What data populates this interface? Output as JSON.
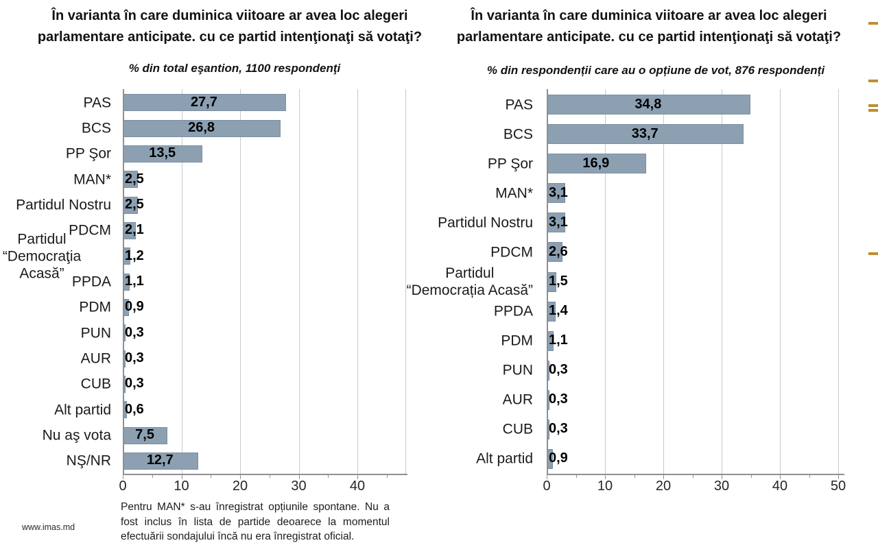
{
  "page": {
    "background": "#ffffff"
  },
  "chart_data": [
    {
      "type": "bar",
      "orientation": "horizontal",
      "title": "În varianta în care duminica viitoare ar avea loc alegeri\nparlamentare anticipate. cu ce partid intenţionaţi să votaţi?",
      "subtitle": "% din total eşantion, 1100 respondenţi",
      "categories": [
        "PAS",
        "BCS",
        "PP Şor",
        "MAN*",
        "Partidul Nostru",
        "PDCM",
        "Partidul\n“Democraţia Acasă”",
        "PPDA",
        "PDM",
        "PUN",
        "AUR",
        "CUB",
        "Alt partid",
        "Nu aş vota",
        "NŞ/NR"
      ],
      "values": [
        27.7,
        26.8,
        13.5,
        2.5,
        2.5,
        2.1,
        1.2,
        1.1,
        0.9,
        0.3,
        0.3,
        0.3,
        0.6,
        7.5,
        12.7
      ],
      "value_labels": [
        "27,7",
        "26,8",
        "13,5",
        "2,5",
        "2,5",
        "2,1",
        "1,2",
        "1,1",
        "0,9",
        "0,3",
        "0,3",
        "0,3",
        "0,6",
        "7,5",
        "12,7"
      ],
      "xlabel": "",
      "ylabel": "",
      "xlim": [
        0,
        48
      ],
      "xticks": [
        0,
        10,
        20,
        30,
        40
      ],
      "grid": true,
      "legend": false,
      "bar_color": "#8ca0b2"
    },
    {
      "type": "bar",
      "orientation": "horizontal",
      "title": "În varianta în care duminica viitoare ar avea loc alegeri\nparlamentare anticipate. cu ce partid intenţionaţi să votaţi?",
      "subtitle": "% din respondenții care au o opțiune de vot, 876 respondenți",
      "categories": [
        "PAS",
        "BCS",
        "PP Şor",
        "MAN*",
        "Partidul Nostru",
        "PDCM",
        "Partidul\n“Democrația Acasă”",
        "PPDA",
        "PDM",
        "PUN",
        "AUR",
        "CUB",
        "Alt partid"
      ],
      "values": [
        34.8,
        33.7,
        16.9,
        3.1,
        3.1,
        2.6,
        1.5,
        1.4,
        1.1,
        0.3,
        0.3,
        0.3,
        0.9
      ],
      "value_labels": [
        "34,8",
        "33,7",
        "16,9",
        "3,1",
        "3,1",
        "2,6",
        "1,5",
        "1,4",
        "1,1",
        "0,3",
        "0,3",
        "0,3",
        "0,9"
      ],
      "xlabel": "",
      "ylabel": "",
      "xlim": [
        0,
        50
      ],
      "xticks": [
        0,
        10,
        20,
        30,
        40,
        50
      ],
      "grid": true,
      "legend": false,
      "bar_color": "#8ca0b2"
    }
  ],
  "footer": {
    "website": "www.imas.md",
    "note": "Pentru MAN* s-au înregistrat opțiunile spontane. Nu a fost inclus în lista de partide deoarece la momentul efectuării sondajului încă nu era înregistrat oficial."
  },
  "decorations": {
    "gold_dash_color": "#bf8e2d",
    "right_edge_dashes_y": [
      32,
      116,
      152,
      159,
      368
    ]
  }
}
